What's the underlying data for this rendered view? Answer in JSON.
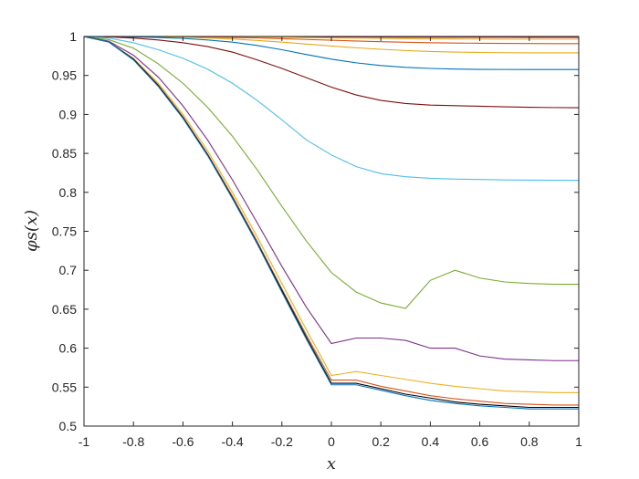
{
  "chart_data": {
    "type": "line",
    "title": "",
    "xlabel": "x",
    "ylabel": "φs(x)",
    "xlim": [
      -1,
      1
    ],
    "ylim": [
      0.5,
      1
    ],
    "xticks": [
      -1,
      -0.8,
      -0.6,
      -0.4,
      -0.2,
      0,
      0.2,
      0.4,
      0.6,
      0.8,
      1
    ],
    "xtick_labels": [
      "-1",
      "-0.8",
      "-0.6",
      "-0.4",
      "-0.2",
      "0",
      "0.2",
      "0.4",
      "0.6",
      "0.8",
      "1"
    ],
    "yticks": [
      0.5,
      0.55,
      0.6,
      0.65,
      0.7,
      0.75,
      0.8,
      0.85,
      0.9,
      0.95,
      1
    ],
    "ytick_labels": [
      "0.5",
      "0.55",
      "0.6",
      "0.65",
      "0.7",
      "0.75",
      "0.8",
      "0.85",
      "0.9",
      "0.95",
      "1"
    ],
    "grid": false,
    "legend": false,
    "x": [
      -1,
      -0.9,
      -0.8,
      -0.7,
      -0.6,
      -0.5,
      -0.4,
      -0.3,
      -0.2,
      -0.1,
      0,
      0.1,
      0.2,
      0.3,
      0.4,
      0.5,
      0.6,
      0.7,
      0.8,
      0.9,
      1
    ],
    "series": [
      {
        "color": "#4dbeee",
        "values": [
          1,
          1,
          1,
          1,
          1,
          1,
          0.9999,
          0.9999,
          0.9999,
          0.9998,
          0.9998,
          0.9998,
          0.9997,
          0.9997,
          0.9997,
          0.9997,
          0.9997,
          0.9996,
          0.9996,
          0.9996,
          0.9996
        ]
      },
      {
        "color": "#a2142f",
        "values": [
          1,
          1,
          1,
          1,
          0.9999,
          0.9999,
          0.9998,
          0.9997,
          0.9996,
          0.9995,
          0.9994,
          0.9993,
          0.9992,
          0.9991,
          0.9991,
          0.999,
          0.999,
          0.999,
          0.9989,
          0.9989,
          0.9989
        ]
      },
      {
        "color": "#edb120",
        "values": [
          1,
          1,
          1,
          0.9999,
          0.9998,
          0.9997,
          0.9995,
          0.9992,
          0.9989,
          0.9985,
          0.9982,
          0.9978,
          0.9975,
          0.9972,
          0.997,
          0.9968,
          0.9967,
          0.9966,
          0.9965,
          0.9965,
          0.9965
        ]
      },
      {
        "color": "#d95319",
        "values": [
          1,
          1,
          0.9999,
          0.9998,
          0.9996,
          0.9993,
          0.9988,
          0.9981,
          0.9972,
          0.9962,
          0.9952,
          0.9942,
          0.9933,
          0.9926,
          0.992,
          0.9916,
          0.9913,
          0.9911,
          0.991,
          0.9909,
          0.9909
        ]
      },
      {
        "color": "#e6a817",
        "values": [
          1,
          1,
          0.9998,
          0.9995,
          0.999,
          0.998,
          0.9968,
          0.995,
          0.9928,
          0.9903,
          0.9878,
          0.9855,
          0.9836,
          0.982,
          0.9808,
          0.98,
          0.9795,
          0.9792,
          0.979,
          0.979,
          0.979
        ]
      },
      {
        "color": "#0072bd",
        "values": [
          1,
          0.9998,
          0.9995,
          0.9988,
          0.9975,
          0.9955,
          0.9928,
          0.9885,
          0.983,
          0.9768,
          0.971,
          0.9662,
          0.9627,
          0.9604,
          0.959,
          0.9582,
          0.9578,
          0.9577,
          0.9576,
          0.9576,
          0.9576
        ]
      },
      {
        "color": "#7e0f0f",
        "values": [
          1,
          0.9995,
          0.998,
          0.9955,
          0.992,
          0.987,
          0.98,
          0.97,
          0.959,
          0.947,
          0.935,
          0.925,
          0.918,
          0.914,
          0.912,
          0.9112,
          0.9105,
          0.9098,
          0.9092,
          0.9088,
          0.9086
        ]
      },
      {
        "color": "#4dbeee",
        "values": [
          1,
          0.998,
          0.992,
          0.983,
          0.972,
          0.958,
          0.94,
          0.918,
          0.893,
          0.867,
          0.848,
          0.833,
          0.824,
          0.82,
          0.818,
          0.817,
          0.8165,
          0.816,
          0.8157,
          0.8155,
          0.8154
        ]
      },
      {
        "color": "#77ac30",
        "values": [
          1,
          0.996,
          0.985,
          0.965,
          0.94,
          0.909,
          0.872,
          0.829,
          0.782,
          0.737,
          0.697,
          0.672,
          0.658,
          0.651,
          0.687,
          0.7,
          0.69,
          0.685,
          0.683,
          0.682,
          0.682
        ]
      },
      {
        "color": "#7e2f8e",
        "values": [
          1,
          0.994,
          0.976,
          0.948,
          0.911,
          0.867,
          0.816,
          0.761,
          0.705,
          0.652,
          0.606,
          0.613,
          0.613,
          0.61,
          0.6,
          0.6,
          0.59,
          0.586,
          0.585,
          0.584,
          0.584
        ]
      },
      {
        "color": "#edb120",
        "values": [
          1,
          0.993,
          0.972,
          0.94,
          0.9,
          0.853,
          0.8,
          0.743,
          0.683,
          0.623,
          0.565,
          0.57,
          0.565,
          0.56,
          0.555,
          0.551,
          0.548,
          0.545,
          0.544,
          0.543,
          0.543
        ]
      },
      {
        "color": "#d95319",
        "values": [
          1,
          0.993,
          0.971,
          0.938,
          0.897,
          0.849,
          0.795,
          0.737,
          0.676,
          0.616,
          0.559,
          0.559,
          0.551,
          0.545,
          0.539,
          0.535,
          0.532,
          0.529,
          0.528,
          0.527,
          0.527
        ]
      },
      {
        "color": "#000000",
        "values": [
          1,
          0.993,
          0.971,
          0.937,
          0.896,
          0.848,
          0.793,
          0.735,
          0.674,
          0.613,
          0.555,
          0.555,
          0.548,
          0.541,
          0.536,
          0.531,
          0.528,
          0.526,
          0.524,
          0.524,
          0.524
        ]
      },
      {
        "color": "#0072bd",
        "values": [
          1,
          0.993,
          0.97,
          0.936,
          0.895,
          0.847,
          0.792,
          0.734,
          0.672,
          0.611,
          0.553,
          0.553,
          0.546,
          0.539,
          0.533,
          0.529,
          0.526,
          0.524,
          0.522,
          0.522,
          0.522
        ]
      }
    ]
  }
}
